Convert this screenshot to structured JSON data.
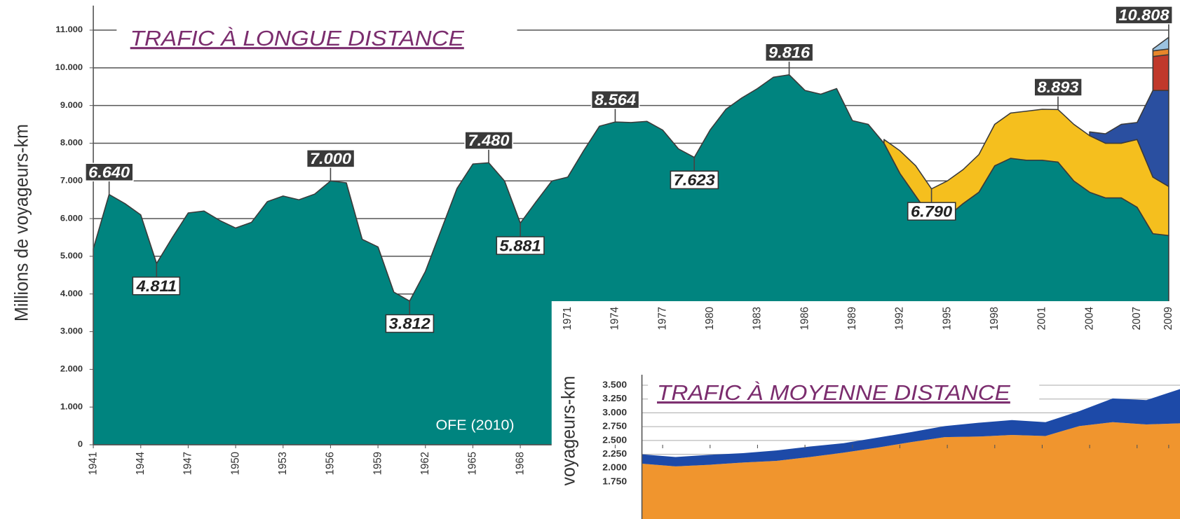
{
  "chart_data": [
    {
      "type": "area",
      "title": "TRAFIC À LONGUE DISTANCE",
      "y_label": "Millions de voyageurs-km",
      "source": "OFE (2010)",
      "x": [
        1941,
        1942,
        1943,
        1944,
        1945,
        1946,
        1947,
        1948,
        1949,
        1950,
        1951,
        1952,
        1953,
        1954,
        1955,
        1956,
        1957,
        1958,
        1959,
        1960,
        1961,
        1962,
        1963,
        1964,
        1965,
        1966,
        1967,
        1968,
        1969,
        1970,
        1971,
        1972,
        1973,
        1974,
        1975,
        1976,
        1977,
        1978,
        1979,
        1980,
        1981,
        1982,
        1983,
        1984,
        1985,
        1986,
        1987,
        1988,
        1989,
        1990,
        1991,
        1992,
        1993,
        1994,
        1995,
        1996,
        1997,
        1998,
        1999,
        2000,
        2001,
        2002,
        2003,
        2004,
        2005,
        2006,
        2007,
        2008,
        2009
      ],
      "xlim": [
        1941,
        2009
      ],
      "xticks": [
        1941,
        1944,
        1947,
        1950,
        1953,
        1956,
        1959,
        1962,
        1965,
        1968,
        1971,
        1974,
        1977,
        1980,
        1983,
        1986,
        1989,
        1992,
        1995,
        1998,
        2001,
        2004,
        2007,
        2009
      ],
      "ylim": [
        0,
        11000
      ],
      "yticks": [
        0,
        {
          "value": 1000,
          "label": "1.000"
        },
        {
          "value": 2000,
          "label": "2.000"
        },
        {
          "value": 3000,
          "label": "3.000"
        },
        {
          "value": 4000,
          "label": "4.000"
        },
        {
          "value": 5000,
          "label": "5.000"
        },
        {
          "value": 6000,
          "label": "6.000"
        },
        {
          "value": 7000,
          "label": "7.000"
        },
        {
          "value": 8000,
          "label": "8.000"
        },
        {
          "value": 9000,
          "label": "9.000"
        },
        {
          "value": 10000,
          "label": "10.000"
        },
        {
          "value": 11000,
          "label": "11.000"
        }
      ],
      "grid": true,
      "series": [
        {
          "color": "#00847f",
          "values": [
            5200,
            6640,
            6400,
            6100,
            4811,
            5500,
            6150,
            6200,
            5950,
            5750,
            5900,
            6450,
            6600,
            6500,
            6650,
            7000,
            6950,
            5450,
            5250,
            4050,
            3812,
            4600,
            5700,
            6800,
            7450,
            7480,
            7000,
            5881,
            6450,
            7000,
            7100,
            7800,
            8450,
            8564,
            8550,
            8580,
            8350,
            7850,
            7623,
            8350,
            8900,
            9200,
            9450,
            9750,
            9816,
            9400,
            9300,
            9450,
            8600,
            8500,
            8000,
            7200,
            6600,
            6000,
            6050,
            6400,
            6700,
            7400,
            7600,
            7550,
            7550,
            7500,
            7000,
            6700,
            6550,
            6550,
            6300,
            5600,
            5550
          ]
        },
        {
          "color": "#f5bf1e",
          "values": [
            null,
            null,
            null,
            null,
            null,
            null,
            null,
            null,
            null,
            null,
            null,
            null,
            null,
            null,
            null,
            null,
            null,
            null,
            null,
            null,
            null,
            null,
            null,
            null,
            null,
            null,
            null,
            null,
            null,
            null,
            null,
            null,
            null,
            null,
            null,
            null,
            null,
            null,
            null,
            null,
            null,
            null,
            null,
            null,
            null,
            null,
            null,
            null,
            null,
            null,
            100,
            600,
            800,
            790,
            950,
            900,
            1000,
            1100,
            1200,
            1300,
            1350,
            1393,
            1500,
            1500,
            1450,
            1450,
            1800,
            1500,
            1300
          ]
        },
        {
          "color": "#2a4fa0",
          "values": [
            null,
            null,
            null,
            null,
            null,
            null,
            null,
            null,
            null,
            null,
            null,
            null,
            null,
            null,
            null,
            null,
            null,
            null,
            null,
            null,
            null,
            null,
            null,
            null,
            null,
            null,
            null,
            null,
            null,
            null,
            null,
            null,
            null,
            null,
            null,
            null,
            null,
            null,
            null,
            null,
            null,
            null,
            null,
            null,
            null,
            null,
            null,
            null,
            null,
            null,
            null,
            null,
            null,
            null,
            null,
            null,
            null,
            null,
            null,
            null,
            null,
            null,
            null,
            100,
            250,
            500,
            450,
            2300,
            2550
          ]
        },
        {
          "color": "#c0392b",
          "values": [
            null,
            null,
            null,
            null,
            null,
            null,
            null,
            null,
            null,
            null,
            null,
            null,
            null,
            null,
            null,
            null,
            null,
            null,
            null,
            null,
            null,
            null,
            null,
            null,
            null,
            null,
            null,
            null,
            null,
            null,
            null,
            null,
            null,
            null,
            null,
            null,
            null,
            null,
            null,
            null,
            null,
            null,
            null,
            null,
            null,
            null,
            null,
            null,
            null,
            null,
            null,
            null,
            null,
            null,
            null,
            null,
            null,
            null,
            null,
            null,
            null,
            null,
            null,
            null,
            null,
            null,
            null,
            900,
            950
          ]
        },
        {
          "color": "#e8862a",
          "values": [
            null,
            null,
            null,
            null,
            null,
            null,
            null,
            null,
            null,
            null,
            null,
            null,
            null,
            null,
            null,
            null,
            null,
            null,
            null,
            null,
            null,
            null,
            null,
            null,
            null,
            null,
            null,
            null,
            null,
            null,
            null,
            null,
            null,
            null,
            null,
            null,
            null,
            null,
            null,
            null,
            null,
            null,
            null,
            null,
            null,
            null,
            null,
            null,
            null,
            null,
            null,
            null,
            null,
            null,
            null,
            null,
            null,
            null,
            null,
            null,
            null,
            null,
            null,
            null,
            null,
            null,
            null,
            150,
            150
          ]
        },
        {
          "color": "#9cc3e0",
          "values": [
            null,
            null,
            null,
            null,
            null,
            null,
            null,
            null,
            null,
            null,
            null,
            null,
            null,
            null,
            null,
            null,
            null,
            null,
            null,
            null,
            null,
            null,
            null,
            null,
            null,
            null,
            null,
            null,
            null,
            null,
            null,
            null,
            null,
            null,
            null,
            null,
            null,
            null,
            null,
            null,
            null,
            null,
            null,
            null,
            null,
            null,
            null,
            null,
            null,
            null,
            null,
            null,
            null,
            null,
            null,
            null,
            null,
            null,
            null,
            null,
            null,
            null,
            null,
            null,
            null,
            null,
            null,
            50,
            308
          ]
        }
      ],
      "annotations": [
        {
          "x": 1942,
          "value": 6640,
          "label": "6.640",
          "position": "above"
        },
        {
          "x": 1945,
          "value": 4811,
          "label": "4.811",
          "position": "below"
        },
        {
          "x": 1956,
          "value": 7000,
          "label": "7.000",
          "position": "above"
        },
        {
          "x": 1961,
          "value": 3812,
          "label": "3.812",
          "position": "below"
        },
        {
          "x": 1966,
          "value": 7480,
          "label": "7.480",
          "position": "above"
        },
        {
          "x": 1968,
          "value": 5881,
          "label": "5.881",
          "position": "below"
        },
        {
          "x": 1974,
          "value": 8564,
          "label": "8.564",
          "position": "above"
        },
        {
          "x": 1979,
          "value": 7623,
          "label": "7.623",
          "position": "below"
        },
        {
          "x": 1985,
          "value": 9816,
          "label": "9.816",
          "position": "above"
        },
        {
          "x": 1994,
          "value": 6790,
          "label": "6.790",
          "position": "below"
        },
        {
          "x": 2002,
          "value": 8893,
          "label": "8.893",
          "position": "above"
        },
        {
          "x": 2009,
          "value": 10808,
          "label": "10.808",
          "position": "above"
        }
      ]
    },
    {
      "type": "area",
      "title": "TRAFIC À MOYENNE DISTANCE",
      "y_label": "voyageurs-km",
      "categories": [
        null,
        null,
        null,
        null,
        null,
        null,
        null,
        null,
        null,
        null,
        null,
        null,
        null,
        null,
        null,
        null,
        null
      ],
      "ylim": [
        1750,
        3500
      ],
      "yticks": [
        {
          "value": 1750,
          "label": "1.750"
        },
        {
          "value": 2000,
          "label": "2.000"
        },
        {
          "value": 2250,
          "label": "2.250"
        },
        {
          "value": 2500,
          "label": "2.500"
        },
        {
          "value": 2750,
          "label": "2.750"
        },
        {
          "value": 3000,
          "label": "3.000"
        },
        {
          "value": 3250,
          "label": "3.250"
        },
        {
          "value": 3500,
          "label": "3.500"
        }
      ],
      "grid": true,
      "series": [
        {
          "color": "#f0952e",
          "values": [
            2080,
            2030,
            2060,
            2100,
            2130,
            2200,
            2280,
            2370,
            2470,
            2560,
            2570,
            2600,
            2580,
            2760,
            2830,
            2790,
            2810
          ]
        },
        {
          "color": "#1d4aa8",
          "values": [
            170,
            170,
            180,
            170,
            190,
            190,
            170,
            180,
            180,
            200,
            250,
            270,
            250,
            270,
            430,
            440,
            620
          ]
        }
      ]
    }
  ]
}
